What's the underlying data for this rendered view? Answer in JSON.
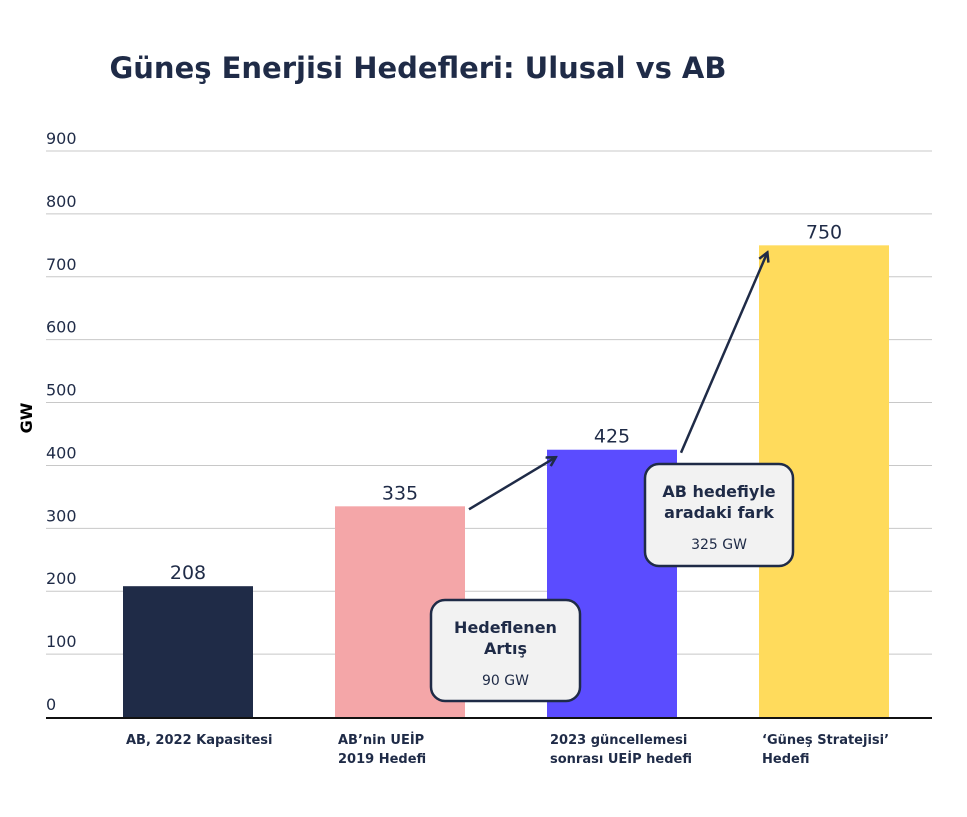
{
  "chart_data": {
    "type": "bar",
    "title": "Güneş Enerjisi Hedefleri: Ulusal vs AB",
    "ylabel": "GW",
    "ylim": [
      0,
      900
    ],
    "yticks": [
      "0",
      "100",
      "200",
      "300",
      "400",
      "500",
      "600",
      "700",
      "800",
      "900"
    ],
    "categories": [
      [
        "AB, 2022 Kapasitesi"
      ],
      [
        "AB’nin UEİP",
        "2019 Hedefi"
      ],
      [
        "2023 güncellemesi",
        "sonrası UEİP hedefi"
      ],
      [
        "‘Güneş Stratejisi’",
        "Hedefi"
      ]
    ],
    "values": [
      208,
      335,
      425,
      750
    ],
    "value_labels": [
      "208",
      "335",
      "425",
      "750"
    ],
    "colors": [
      "#1f2b47",
      "#f4a6a8",
      "#5b4cff",
      "#ffdb5c"
    ],
    "grid": true,
    "annotations": [
      {
        "title": [
          "Hedeflenen",
          "Artış"
        ],
        "value": "90 GW",
        "from": 1,
        "to": 2
      },
      {
        "title": [
          "AB hedefiyle",
          "aradaki fark"
        ],
        "value": "325 GW",
        "from": 2,
        "to": 3
      }
    ]
  }
}
